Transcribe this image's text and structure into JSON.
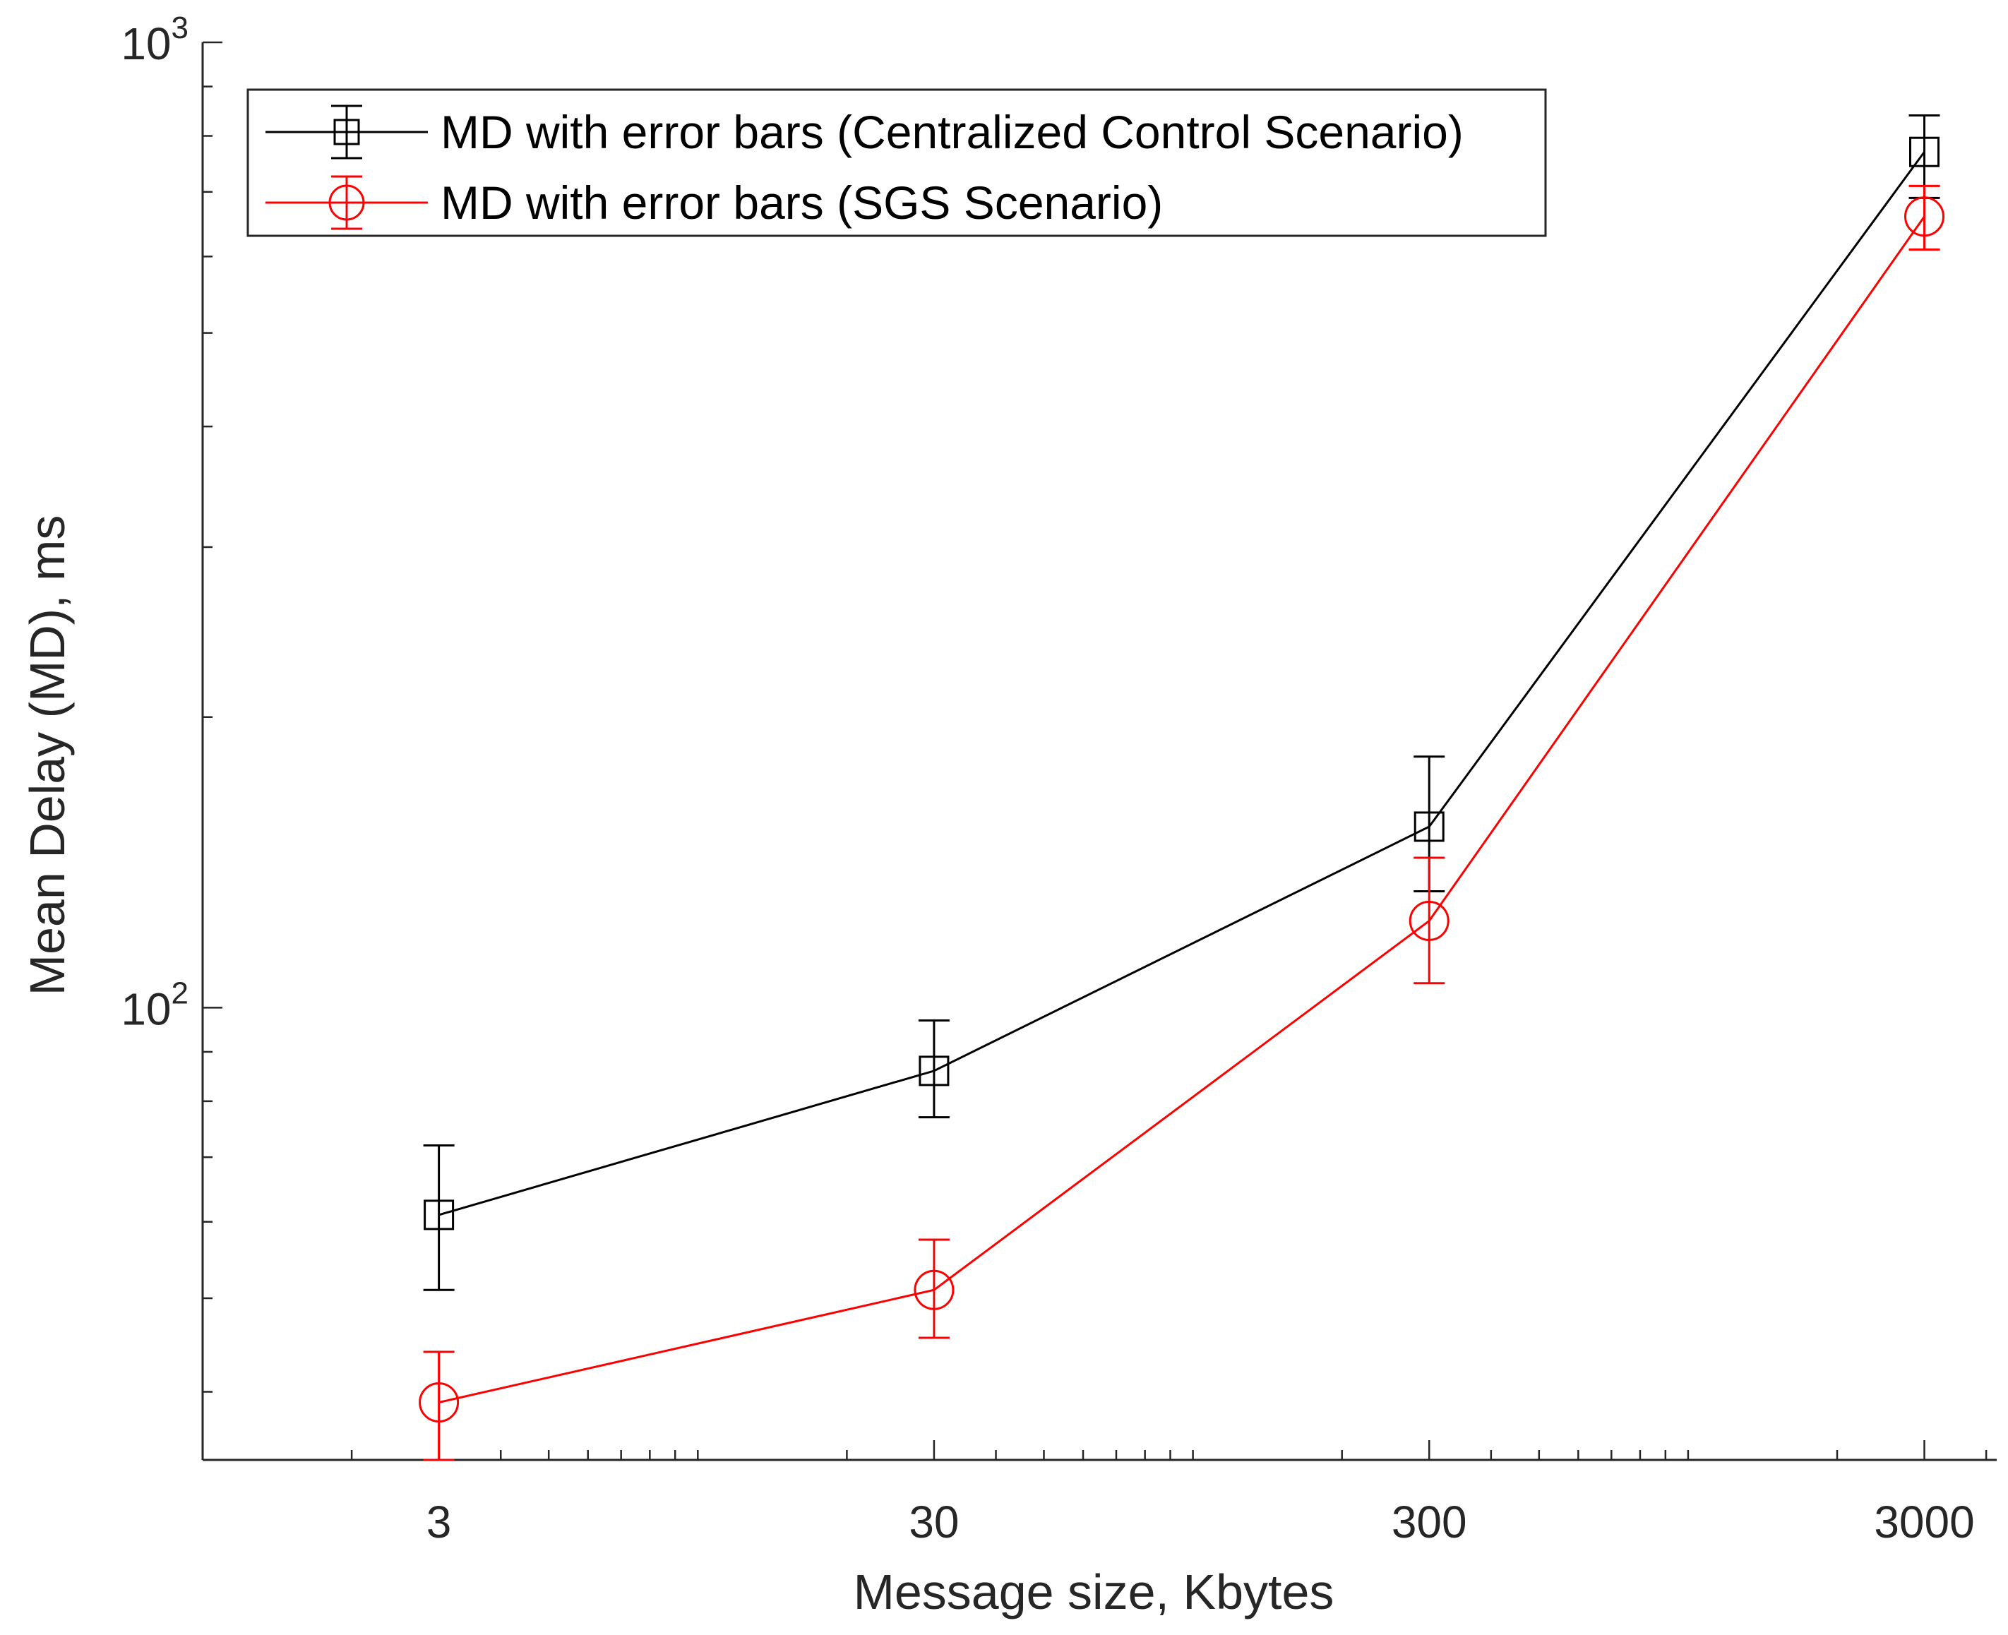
{
  "chart_data": {
    "type": "line",
    "title": "",
    "xlabel": "Message size, Kbytes",
    "ylabel": "Mean Delay (MD), ms",
    "x_scale": "log",
    "y_scale": "log",
    "xlim": [
      1.0,
      4200
    ],
    "ylim": [
      34,
      1000
    ],
    "x_ticks": [
      3,
      30,
      300,
      3000
    ],
    "x_tick_labels": [
      "3",
      "30",
      "300",
      "3000"
    ],
    "y_ticks": [
      {
        "value": 100,
        "base": "10",
        "exp": "2"
      },
      {
        "value": 1000,
        "base": "10",
        "exp": "3"
      }
    ],
    "grid": false,
    "legend_position": "top-left",
    "x": [
      3,
      30,
      300,
      3000
    ],
    "series": [
      {
        "name": "MD with error bars (Centralized Control Scenario)",
        "color": "#000000",
        "marker": "square",
        "values": [
          61,
          86,
          154,
          770
        ],
        "err_low": [
          51,
          77,
          132,
          690
        ],
        "err_high": [
          72,
          97,
          182,
          840
        ]
      },
      {
        "name": "MD with error bars (SGS Scenario)",
        "color": "#ff0000",
        "marker": "circle",
        "values": [
          39,
          51,
          123,
          660
        ],
        "err_low": [
          34,
          45.5,
          106,
          610
        ],
        "err_high": [
          44,
          57.5,
          143,
          710
        ]
      }
    ]
  }
}
